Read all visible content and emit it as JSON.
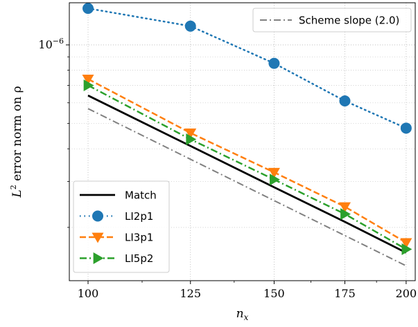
{
  "chart_data": {
    "type": "line",
    "xlabel": "n_x",
    "ylabel_prefix": "L",
    "ylabel_sup": "2",
    "ylabel_suffix": " error norm on ρ",
    "x_scale": "log",
    "y_scale": "log",
    "xlim": [
      96,
      204
    ],
    "ylim": [
      1.25e-07,
      1.45e-06
    ],
    "x_ticks": [
      {
        "value": 100,
        "label": "100"
      },
      {
        "value": 125,
        "label": "125"
      },
      {
        "value": 150,
        "label": "150"
      },
      {
        "value": 175,
        "label": "175"
      },
      {
        "value": 200,
        "label": "200"
      }
    ],
    "y_major_ticks": [
      {
        "value": 1e-06,
        "base": "10",
        "exp": "−6"
      }
    ],
    "y_minor_ticks": [
      2e-07,
      3e-07,
      4e-07,
      5e-07,
      6e-07,
      7e-07,
      8e-07,
      9e-07
    ],
    "grid": "dotted",
    "x": [
      100,
      125,
      150,
      175,
      200
    ],
    "series": [
      {
        "name": "Match",
        "color": "#000000",
        "dash": "solid",
        "marker": "none",
        "values": [
          6.4e-07,
          4.1e-07,
          2.85e-07,
          2.1e-07,
          1.6e-07
        ]
      },
      {
        "name": "LI2p1",
        "color": "#1f77b4",
        "dash": "dotted",
        "marker": "circle",
        "values": [
          1.38e-06,
          1.18e-06,
          8.5e-07,
          6.1e-07,
          4.8e-07
        ]
      },
      {
        "name": "LI3p1",
        "color": "#ff7f0e",
        "dash": "dashed",
        "marker": "triangle_down",
        "values": [
          7.4e-07,
          4.6e-07,
          3.25e-07,
          2.4e-07,
          1.75e-07
        ]
      },
      {
        "name": "LI5p2",
        "color": "#2ca02c",
        "dash": "dashdot",
        "marker": "triangle_right",
        "values": [
          7e-07,
          4.35e-07,
          3.05e-07,
          2.25e-07,
          1.65e-07
        ]
      }
    ],
    "reference_line": {
      "name": "Scheme slope (2.0)",
      "color": "#808080",
      "dash": "dashdot",
      "x": [
        100,
        200
      ],
      "values": [
        5.7e-07,
        1.425e-07
      ]
    },
    "legends": [
      {
        "placement": "bottom-left",
        "entries": [
          "Match",
          "LI2p1",
          "LI3p1",
          "LI5p2"
        ]
      },
      {
        "placement": "top-right",
        "entries": [
          "Scheme slope (2.0)"
        ]
      }
    ]
  }
}
